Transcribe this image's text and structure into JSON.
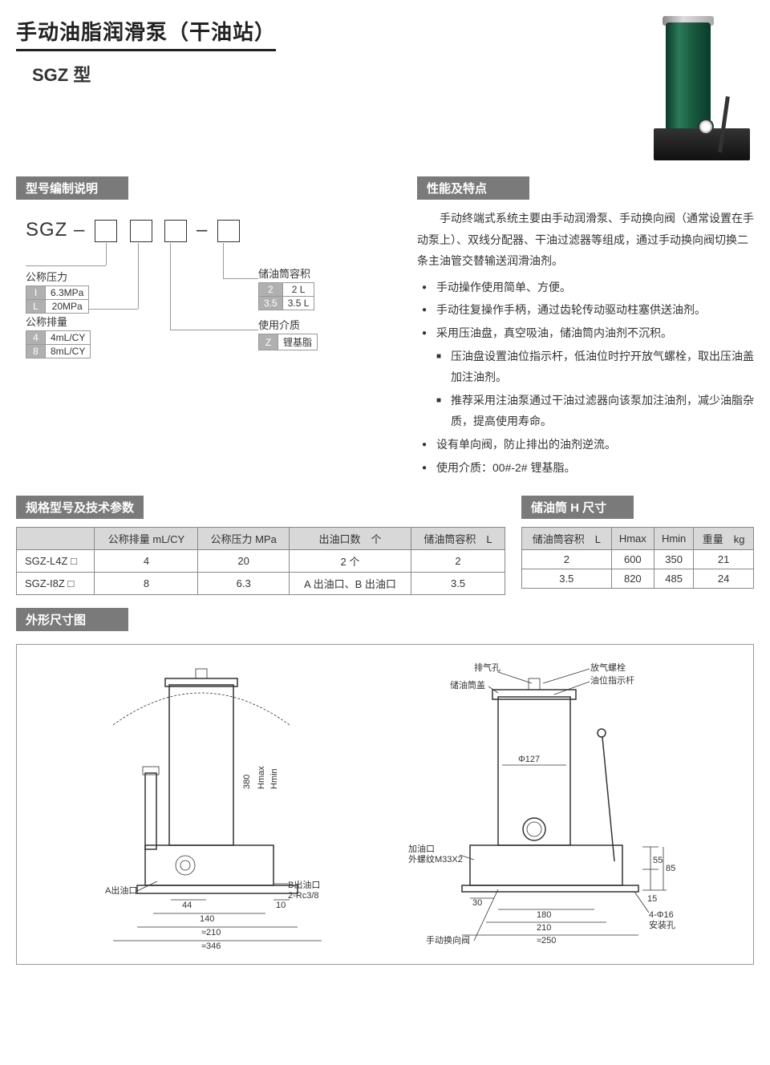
{
  "title": "手动油脂润滑泵（干油站）",
  "subtitle": "SGZ 型",
  "sections": {
    "modelDesc": "型号编制说明",
    "features": "性能及特点",
    "specs": "规格型号及技术参数",
    "tankDim": "储油筒 H 尺寸",
    "outlineDim": "外形尺寸图"
  },
  "modelCode": {
    "prefix": "SGZ –",
    "dash": "–"
  },
  "paramGroups": {
    "pressure": {
      "label": "公称压力",
      "rows": [
        {
          "key": "I",
          "val": "6.3MPa"
        },
        {
          "key": "L",
          "val": "20MPa"
        }
      ]
    },
    "displacement": {
      "label": "公称排量",
      "rows": [
        {
          "key": "4",
          "val": "4mL/CY"
        },
        {
          "key": "8",
          "val": "8mL/CY"
        }
      ]
    },
    "capacity": {
      "label": "储油筒容积",
      "rows": [
        {
          "key": "2",
          "val": "2 L"
        },
        {
          "key": "3.5",
          "val": "3.5 L"
        }
      ]
    },
    "medium": {
      "label": "使用介质",
      "rows": [
        {
          "key": "Z",
          "val": "锂基脂"
        }
      ]
    }
  },
  "featuresIntro": "手动终端式系统主要由手动润滑泵、手动换向阀（通常设置在手动泵上）、双线分配器、干油过滤器等组成，通过手动换向阀切换二条主油管交替输送润滑油剂。",
  "featuresList": [
    {
      "text": "手动操作使用简单、方便。",
      "sub": false
    },
    {
      "text": "手动往复操作手柄，通过齿轮传动驱动柱塞供送油剂。",
      "sub": false
    },
    {
      "text": "采用压油盘，真空吸油，储油筒内油剂不沉积。",
      "sub": false
    },
    {
      "text": "压油盘设置油位指示杆，低油位时拧开放气螺栓，取出压油盖加注油剂。",
      "sub": true
    },
    {
      "text": "推荐采用注油泵通过干油过滤器向该泵加注油剂，减少油脂杂质，提高使用寿命。",
      "sub": true
    },
    {
      "text": "设有单向阀，防止排出的油剂逆流。",
      "sub": false
    },
    {
      "text": "使用介质：00#-2# 锂基脂。",
      "sub": false
    }
  ],
  "specTable": {
    "headers": [
      "",
      "公称排量 mL/CY",
      "公称压力 MPa",
      "出油口数　个",
      "储油筒容积　L"
    ],
    "rows": [
      [
        "SGZ-L4Z □",
        "4",
        "20",
        "2 个",
        "2"
      ],
      [
        "SGZ-I8Z □",
        "8",
        "6.3",
        "A 出油口、B 出油口",
        "3.5"
      ]
    ]
  },
  "tankTable": {
    "headers": [
      "储油筒容积　L",
      "Hmax",
      "Hmin",
      "重量　kg"
    ],
    "rows": [
      [
        "2",
        "600",
        "350",
        "21"
      ],
      [
        "3.5",
        "820",
        "485",
        "24"
      ]
    ]
  },
  "drawingLabels": {
    "left": {
      "aOutlet": "A出油口",
      "bOutlet": "B出油口",
      "thread": "2-Rc3/8",
      "d44": "44",
      "d10": "10",
      "d140": "140",
      "d210": "≈210",
      "d346": "≈346",
      "d380": "380",
      "hmax": "Hmax",
      "hmin": "Hmin"
    },
    "right": {
      "vent": "排气孔",
      "cap": "储油筒盖",
      "bolt": "放气螺栓",
      "indicator": "油位指示杆",
      "phi127": "Φ127",
      "fillPort": "加油口",
      "thread": "外螺纹M33X2",
      "valve": "手动换向阀",
      "d30": "30",
      "d180": "180",
      "d210b": "210",
      "d250": "≈250",
      "d55": "55",
      "d85": "85",
      "d15": "15",
      "holes": "4-Φ16",
      "holesLabel": "安装孔"
    }
  },
  "colors": {
    "sectionBg": "#7a7a7a",
    "tableHeaderBg": "#d8d8d8",
    "border": "#888888",
    "text": "#333333",
    "pumpGreen": "#1a5a3f",
    "pumpDark": "#111111"
  }
}
